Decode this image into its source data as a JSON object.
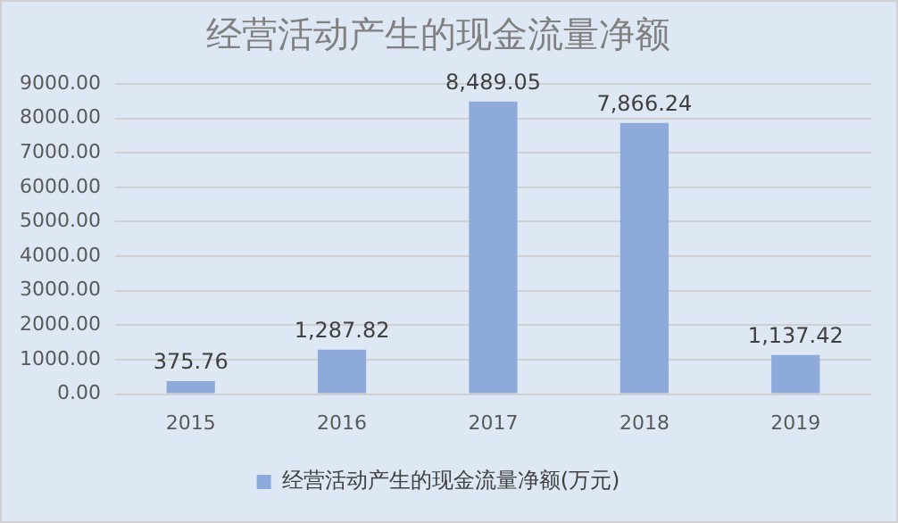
{
  "chart_data": {
    "type": "bar",
    "title": "经营活动产生的现金流量净额",
    "categories": [
      "2015",
      "2016",
      "2017",
      "2018",
      "2019"
    ],
    "series": [
      {
        "name": "经营活动产生的现金流量净额(万元)",
        "color": "#8eaadb",
        "values": [
          375.76,
          1287.82,
          8489.05,
          7866.24,
          1137.42
        ],
        "value_labels": [
          "375.76",
          "1,287.82",
          "8,489.05",
          "7,866.24",
          "1,137.42"
        ]
      }
    ],
    "ylim": [
      0,
      9000
    ],
    "yticks": [
      {
        "value": 0,
        "label": "0.00"
      },
      {
        "value": 1000,
        "label": "1000.00"
      },
      {
        "value": 2000,
        "label": "2000.00"
      },
      {
        "value": 3000,
        "label": "3000.00"
      },
      {
        "value": 4000,
        "label": "4000.00"
      },
      {
        "value": 5000,
        "label": "5000.00"
      },
      {
        "value": 6000,
        "label": "6000.00"
      },
      {
        "value": 7000,
        "label": "7000.00"
      },
      {
        "value": 8000,
        "label": "8000.00"
      },
      {
        "value": 9000,
        "label": "9000.00"
      }
    ],
    "grid": "y",
    "legend": "bottom"
  }
}
